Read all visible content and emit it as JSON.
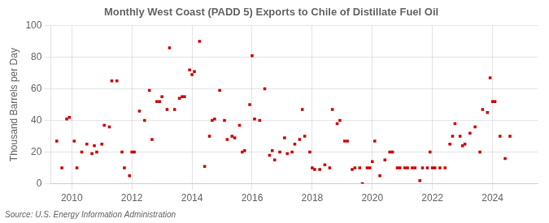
{
  "chart_data": {
    "type": "scatter",
    "title": "Monthly West Coast (PADD 5) Exports to Chile of Distillate Fuel Oil",
    "y_label": "Thousand Barrels per Day",
    "annotations": [
      "Source: U.S. Energy Information Administration"
    ],
    "color": "#cc0000",
    "marker": "square",
    "grid": true,
    "xlim": [
      2009.3,
      2025.5
    ],
    "xticks": [
      2010,
      2012,
      2014,
      2016,
      2018,
      2020,
      2022,
      2024
    ],
    "ylim": [
      0,
      100
    ],
    "yticks": [
      0,
      20,
      40,
      60,
      80,
      100
    ],
    "x": [
      2009.5,
      2009.67,
      2009.83,
      2009.92,
      2010.08,
      2010.17,
      2010.33,
      2010.5,
      2010.67,
      2010.75,
      2010.83,
      2011.0,
      2011.08,
      2011.25,
      2011.33,
      2011.5,
      2011.67,
      2011.75,
      2011.92,
      2012.0,
      2012.08,
      2012.25,
      2012.42,
      2012.58,
      2012.67,
      2012.83,
      2012.92,
      2013.0,
      2013.17,
      2013.25,
      2013.42,
      2013.58,
      2013.67,
      2013.75,
      2013.92,
      2014.0,
      2014.08,
      2014.25,
      2014.42,
      2014.58,
      2014.67,
      2014.75,
      2014.92,
      2015.08,
      2015.17,
      2015.33,
      2015.42,
      2015.58,
      2015.67,
      2015.75,
      2015.92,
      2016.0,
      2016.08,
      2016.25,
      2016.42,
      2016.58,
      2016.67,
      2016.75,
      2016.92,
      2017.08,
      2017.17,
      2017.33,
      2017.42,
      2017.58,
      2017.67,
      2017.75,
      2017.92,
      2018.0,
      2018.08,
      2018.25,
      2018.42,
      2018.58,
      2018.67,
      2018.83,
      2018.92,
      2019.08,
      2019.17,
      2019.33,
      2019.42,
      2019.58,
      2019.67,
      2019.83,
      2019.92,
      2020.0,
      2020.08,
      2020.25,
      2020.42,
      2020.58,
      2020.67,
      2020.83,
      2020.92,
      2021.08,
      2021.17,
      2021.33,
      2021.42,
      2021.58,
      2021.67,
      2021.83,
      2021.92,
      2022.0,
      2022.08,
      2022.25,
      2022.42,
      2022.58,
      2022.67,
      2022.75,
      2022.92,
      2023.0,
      2023.08,
      2023.25,
      2023.42,
      2023.58,
      2023.67,
      2023.83,
      2023.92,
      2024.0,
      2024.08,
      2024.25,
      2024.42,
      2024.58
    ],
    "values": [
      27,
      10,
      41,
      42,
      27,
      10,
      20,
      25,
      19,
      24,
      20,
      25,
      37,
      36,
      65,
      65,
      20,
      10,
      5,
      20,
      20,
      46,
      40,
      59,
      28,
      52,
      52,
      55,
      47,
      86,
      47,
      54,
      55,
      55,
      72,
      69,
      71,
      90,
      11,
      30,
      40,
      41,
      59,
      40,
      28,
      30,
      29,
      37,
      20,
      21,
      50,
      81,
      41,
      40,
      60,
      18,
      21,
      15,
      20,
      29,
      19,
      20,
      25,
      28,
      47,
      30,
      20,
      10,
      9,
      9,
      12,
      10,
      47,
      38,
      40,
      27,
      27,
      9,
      10,
      10,
      0,
      10,
      10,
      14,
      27,
      5,
      15,
      20,
      20,
      10,
      10,
      10,
      10,
      10,
      10,
      2,
      10,
      10,
      20,
      10,
      10,
      10,
      10,
      25,
      30,
      38,
      30,
      24,
      25,
      32,
      36,
      20,
      47,
      45,
      67,
      52,
      52,
      30,
      16,
      30
    ]
  }
}
